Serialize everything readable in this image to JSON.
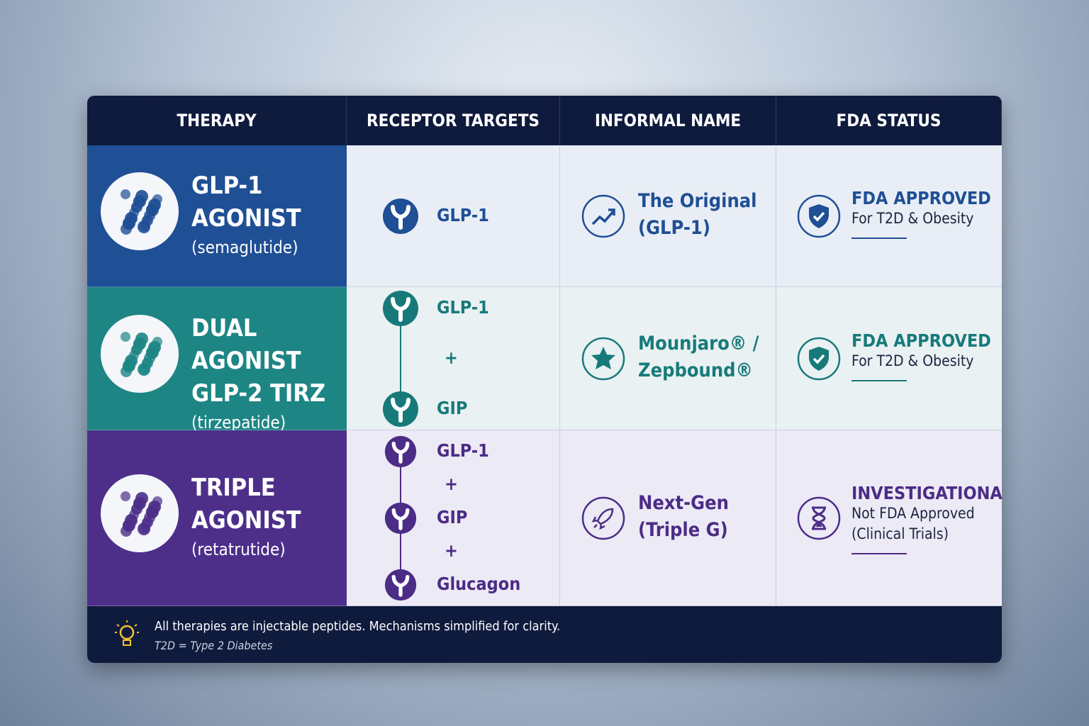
{
  "table": {
    "headers": [
      "THERAPY",
      "RECEPTOR TARGETS",
      "INFORMAL NAME",
      "FDA STATUS"
    ],
    "rows": [
      {
        "therapy": {
          "name": [
            "GLP-1",
            "AGONIST"
          ],
          "generic": "(semaglutide)"
        },
        "targets": [
          "GLP-1"
        ],
        "informal": [
          "The Original",
          "(GLP-1)"
        ],
        "fda": {
          "status": "FDA APPROVED",
          "details": [
            "For T2D & Obesity"
          ]
        }
      },
      {
        "therapy": {
          "name": [
            "DUAL AGONIST",
            "GLP-2 TIRZ"
          ],
          "generic": "(tirzepatide)"
        },
        "targets": [
          "GLP-1",
          "+",
          "GIP"
        ],
        "informal": [
          "Mounjaro® /",
          "Zepbound®"
        ],
        "fda": {
          "status": "FDA APPROVED",
          "details": [
            "For T2D & Obesity"
          ]
        }
      },
      {
        "therapy": {
          "name": [
            "TRIPLE",
            "AGONIST"
          ],
          "generic": "(retatrutide)"
        },
        "targets": [
          "GLP-1",
          "+",
          "GIP",
          "+",
          "Glucagon"
        ],
        "informal": [
          "Next-Gen",
          "(Triple G)"
        ],
        "fda": {
          "status": "INVESTIGATIONAL",
          "details": [
            "Not FDA Approved",
            "(Clinical Trials)"
          ]
        }
      }
    ]
  },
  "footer": {
    "note": "All therapies are injectable peptides. Mechanisms simplified for clarity.",
    "sub": "T2D = Type 2 Diabetes"
  }
}
